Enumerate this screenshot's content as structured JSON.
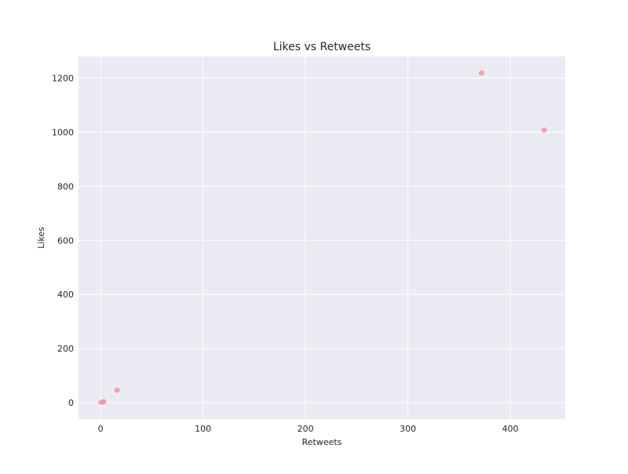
{
  "chart_data": {
    "type": "scatter",
    "title": "Likes vs Retweets",
    "xlabel": "Retweets",
    "ylabel": "Likes",
    "xlim": [
      -21.6,
      453.6
    ],
    "ylim": [
      -60.9,
      1279.9
    ],
    "xticks": [
      0,
      100,
      200,
      300,
      400
    ],
    "yticks": [
      0,
      200,
      400,
      600,
      800,
      1000,
      1200
    ],
    "grid": true,
    "legend": "none",
    "colors": {
      "background": "#eaeaf2",
      "grid": "#ffffff",
      "point": "#f08b9c"
    },
    "series": [
      {
        "points": [
          {
            "x": 0,
            "y": 0
          },
          {
            "x": 0,
            "y": 1
          },
          {
            "x": 1,
            "y": 0
          },
          {
            "x": 1,
            "y": 2
          },
          {
            "x": 3,
            "y": 3
          },
          {
            "x": 16,
            "y": 46
          },
          {
            "x": 372,
            "y": 1219
          },
          {
            "x": 433,
            "y": 1008
          }
        ]
      }
    ]
  }
}
